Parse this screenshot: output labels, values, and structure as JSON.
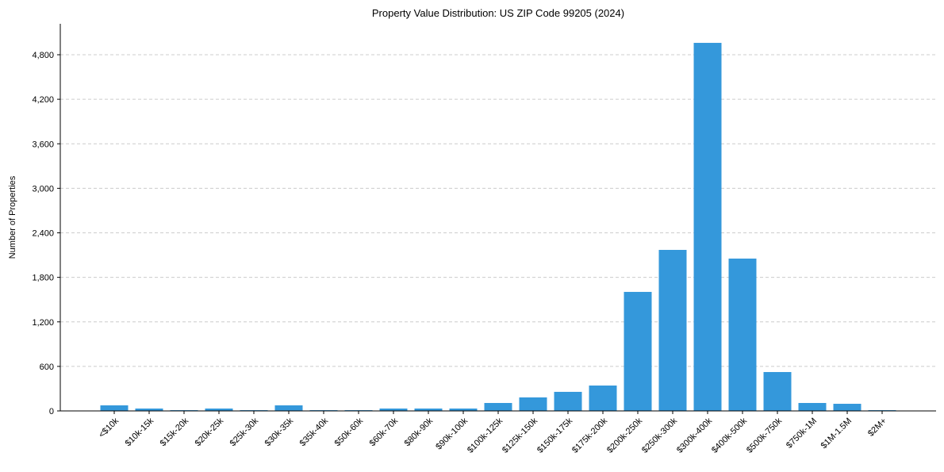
{
  "chart_data": {
    "type": "bar",
    "title": "Property Value Distribution: US ZIP Code 99205 (2024)",
    "xlabel": "",
    "ylabel": "Number of Properties",
    "ylim": [
      0,
      5200
    ],
    "yticks": [
      0,
      600,
      1200,
      1800,
      2400,
      3000,
      3600,
      4200,
      4800
    ],
    "ytick_labels": [
      "0",
      "600",
      "1,200",
      "1,800",
      "2,400",
      "3,000",
      "3,600",
      "4,200",
      "4,800"
    ],
    "grid": "y dashed",
    "color": "#3498db",
    "categories": [
      "<$10k",
      "$10k-15k",
      "$15k-20k",
      "$20k-25k",
      "$25k-30k",
      "$30k-35k",
      "$35k-40k",
      "$50k-60k",
      "$60k-70k",
      "$80k-90k",
      "$90k-100k",
      "$100k-125k",
      "$125k-150k",
      "$150k-175k",
      "$175k-200k",
      "$200k-250k",
      "$250k-300k",
      "$300k-400k",
      "$400k-500k",
      "$500k-750k",
      "$750k-1M",
      "$1M-1.5M",
      "$2M+"
    ],
    "values": [
      75,
      32,
      10,
      32,
      10,
      75,
      10,
      10,
      32,
      32,
      32,
      107,
      182,
      257,
      342,
      1604,
      2170,
      4960,
      2053,
      524,
      107,
      96,
      10
    ]
  }
}
